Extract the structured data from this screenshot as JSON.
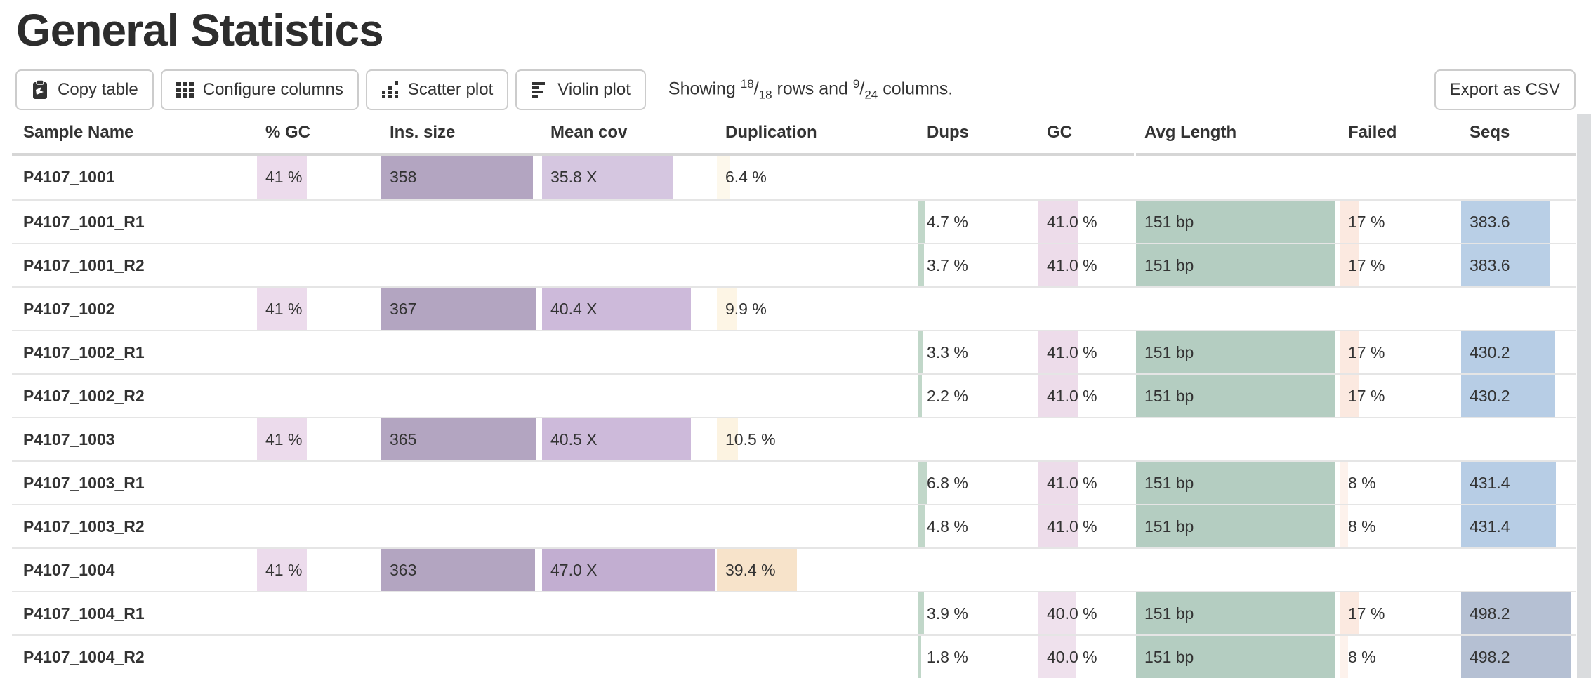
{
  "page": {
    "title": "General Statistics"
  },
  "toolbar": {
    "buttons": [
      {
        "id": "copy-table",
        "label": "Copy table",
        "icon": "clipboard-icon"
      },
      {
        "id": "configure-columns",
        "label": "Configure columns",
        "icon": "grid-icon"
      },
      {
        "id": "scatter-plot",
        "label": "Scatter plot",
        "icon": "scatter-icon"
      },
      {
        "id": "violin-plot",
        "label": "Violin plot",
        "icon": "violin-icon"
      }
    ],
    "showing": {
      "prefix": "Showing",
      "rows_shown": "18",
      "rows_total": "18",
      "mid": "rows and",
      "cols_shown": "9",
      "cols_total": "24",
      "suffix": "columns."
    },
    "export_label": "Export as CSV"
  },
  "colors": {
    "gc_pct_bar": "#ecdbec",
    "ins_size_bar": "#b3a5c1",
    "dups_bar": "#c1d7c9",
    "avg_len_bar": "#b4cdc1",
    "header_rule": "#d6d6d6",
    "row_divider": "#e5e5e5",
    "scrollbar": "#dadcde"
  },
  "table": {
    "columns": [
      {
        "id": "sample",
        "label": "Sample Name"
      },
      {
        "id": "gc_pct",
        "label": "% GC"
      },
      {
        "id": "ins_size",
        "label": "Ins. size"
      },
      {
        "id": "mean_cov",
        "label": "Mean cov"
      },
      {
        "id": "duplication",
        "label": "Duplication"
      },
      {
        "id": "dups",
        "label": "Dups"
      },
      {
        "id": "gc",
        "label": "GC"
      },
      {
        "id": "avg_len",
        "label": "Avg Length"
      },
      {
        "id": "failed",
        "label": "Failed"
      },
      {
        "id": "seqs",
        "label": "Seqs"
      }
    ],
    "rows": [
      {
        "sample": "P4107_1001",
        "cells": [
          {
            "col": "gc_pct",
            "text": "41 %",
            "bar_pct": 41,
            "bar_color": "#ecdbec"
          },
          {
            "col": "ins_size",
            "text": "358",
            "bar_pct": 95.5,
            "bar_color": "#b3a5c1"
          },
          {
            "col": "mean_cov",
            "text": "35.8 X",
            "bar_pct": 76,
            "bar_color": "#d5c6e0"
          },
          {
            "col": "duplication",
            "text": "6.4 %",
            "bar_pct": 6.5,
            "bar_color": "#fdf8ec"
          }
        ]
      },
      {
        "sample": "P4107_1001_R1",
        "cells": [
          {
            "col": "dups",
            "text": "4.7 %",
            "bar_pct": 6,
            "bar_color": "#c1d7c9"
          },
          {
            "col": "gc",
            "text": "41.0 %",
            "bar_pct": 41,
            "bar_color": "#eddcea"
          },
          {
            "col": "avg_len",
            "text": "151 bp",
            "bar_pct": 99,
            "bar_color": "#b4cdc1"
          },
          {
            "col": "failed",
            "text": "17 %",
            "bar_pct": 16,
            "bar_color": "#fbe9e0"
          },
          {
            "col": "seqs",
            "text": "383.6",
            "bar_pct": 77,
            "bar_color": "#b9cfe6"
          }
        ]
      },
      {
        "sample": "P4107_1001_R2",
        "cells": [
          {
            "col": "dups",
            "text": "3.7 %",
            "bar_pct": 5,
            "bar_color": "#c1d7c9"
          },
          {
            "col": "gc",
            "text": "41.0 %",
            "bar_pct": 41,
            "bar_color": "#eddcea"
          },
          {
            "col": "avg_len",
            "text": "151 bp",
            "bar_pct": 99,
            "bar_color": "#b4cdc1"
          },
          {
            "col": "failed",
            "text": "17 %",
            "bar_pct": 16,
            "bar_color": "#fbe9e0"
          },
          {
            "col": "seqs",
            "text": "383.6",
            "bar_pct": 77,
            "bar_color": "#b9cfe6"
          }
        ]
      },
      {
        "sample": "P4107_1002",
        "cells": [
          {
            "col": "gc_pct",
            "text": "41 %",
            "bar_pct": 41,
            "bar_color": "#ecdbec"
          },
          {
            "col": "ins_size",
            "text": "367",
            "bar_pct": 97.9,
            "bar_color": "#b3a5c1"
          },
          {
            "col": "mean_cov",
            "text": "40.4 X",
            "bar_pct": 86,
            "bar_color": "#cdbada"
          },
          {
            "col": "duplication",
            "text": "9.9 %",
            "bar_pct": 10,
            "bar_color": "#fdf5e5"
          }
        ]
      },
      {
        "sample": "P4107_1002_R1",
        "cells": [
          {
            "col": "dups",
            "text": "3.3 %",
            "bar_pct": 4,
            "bar_color": "#c1d7c9"
          },
          {
            "col": "gc",
            "text": "41.0 %",
            "bar_pct": 41,
            "bar_color": "#eddcea"
          },
          {
            "col": "avg_len",
            "text": "151 bp",
            "bar_pct": 99,
            "bar_color": "#b4cdc1"
          },
          {
            "col": "failed",
            "text": "17 %",
            "bar_pct": 16,
            "bar_color": "#fbe9e0"
          },
          {
            "col": "seqs",
            "text": "430.2",
            "bar_pct": 82,
            "bar_color": "#b7cde5"
          }
        ]
      },
      {
        "sample": "P4107_1002_R2",
        "cells": [
          {
            "col": "dups",
            "text": "2.2 %",
            "bar_pct": 3,
            "bar_color": "#c1d7c9"
          },
          {
            "col": "gc",
            "text": "41.0 %",
            "bar_pct": 41,
            "bar_color": "#eddcea"
          },
          {
            "col": "avg_len",
            "text": "151 bp",
            "bar_pct": 99,
            "bar_color": "#b4cdc1"
          },
          {
            "col": "failed",
            "text": "17 %",
            "bar_pct": 16,
            "bar_color": "#fbe9e0"
          },
          {
            "col": "seqs",
            "text": "430.2",
            "bar_pct": 82,
            "bar_color": "#b7cde5"
          }
        ]
      },
      {
        "sample": "P4107_1003",
        "cells": [
          {
            "col": "gc_pct",
            "text": "41 %",
            "bar_pct": 41,
            "bar_color": "#ecdbec"
          },
          {
            "col": "ins_size",
            "text": "365",
            "bar_pct": 97.3,
            "bar_color": "#b3a5c1"
          },
          {
            "col": "mean_cov",
            "text": "40.5 X",
            "bar_pct": 86.2,
            "bar_color": "#cdbada"
          },
          {
            "col": "duplication",
            "text": "10.5 %",
            "bar_pct": 10.5,
            "bar_color": "#fcf3e1"
          }
        ]
      },
      {
        "sample": "P4107_1003_R1",
        "cells": [
          {
            "col": "dups",
            "text": "6.8 %",
            "bar_pct": 8,
            "bar_color": "#c1d7c9"
          },
          {
            "col": "gc",
            "text": "41.0 %",
            "bar_pct": 41,
            "bar_color": "#eddcea"
          },
          {
            "col": "avg_len",
            "text": "151 bp",
            "bar_pct": 99,
            "bar_color": "#b4cdc1"
          },
          {
            "col": "failed",
            "text": "8 %",
            "bar_pct": 7,
            "bar_color": "#fdf2ec"
          },
          {
            "col": "seqs",
            "text": "431.4",
            "bar_pct": 82.5,
            "bar_color": "#b7cde5"
          }
        ]
      },
      {
        "sample": "P4107_1003_R2",
        "cells": [
          {
            "col": "dups",
            "text": "4.8 %",
            "bar_pct": 6,
            "bar_color": "#c1d7c9"
          },
          {
            "col": "gc",
            "text": "41.0 %",
            "bar_pct": 41,
            "bar_color": "#eddcea"
          },
          {
            "col": "avg_len",
            "text": "151 bp",
            "bar_pct": 99,
            "bar_color": "#b4cdc1"
          },
          {
            "col": "failed",
            "text": "8 %",
            "bar_pct": 7,
            "bar_color": "#fdf2ec"
          },
          {
            "col": "seqs",
            "text": "431.4",
            "bar_pct": 82.5,
            "bar_color": "#b7cde5"
          }
        ]
      },
      {
        "sample": "P4107_1004",
        "cells": [
          {
            "col": "gc_pct",
            "text": "41 %",
            "bar_pct": 41,
            "bar_color": "#ecdbec"
          },
          {
            "col": "ins_size",
            "text": "363",
            "bar_pct": 96.8,
            "bar_color": "#b3a5c1"
          },
          {
            "col": "mean_cov",
            "text": "47.0 X",
            "bar_pct": 100,
            "bar_color": "#c2aed1"
          },
          {
            "col": "duplication",
            "text": "39.4 %",
            "bar_pct": 40,
            "bar_color": "#f7e3ca"
          }
        ]
      },
      {
        "sample": "P4107_1004_R1",
        "cells": [
          {
            "col": "dups",
            "text": "3.9 %",
            "bar_pct": 5,
            "bar_color": "#c1d7c9"
          },
          {
            "col": "gc",
            "text": "40.0 %",
            "bar_pct": 40,
            "bar_color": "#efe1ed"
          },
          {
            "col": "avg_len",
            "text": "151 bp",
            "bar_pct": 99,
            "bar_color": "#b4cdc1"
          },
          {
            "col": "failed",
            "text": "17 %",
            "bar_pct": 16,
            "bar_color": "#fbe9e0"
          },
          {
            "col": "seqs",
            "text": "498.2",
            "bar_pct": 95.5,
            "bar_color": "#b5c0d3"
          }
        ]
      },
      {
        "sample": "P4107_1004_R2",
        "cells": [
          {
            "col": "dups",
            "text": "1.8 %",
            "bar_pct": 2.5,
            "bar_color": "#c1d7c9"
          },
          {
            "col": "gc",
            "text": "40.0 %",
            "bar_pct": 40,
            "bar_color": "#efe1ed"
          },
          {
            "col": "avg_len",
            "text": "151 bp",
            "bar_pct": 99,
            "bar_color": "#b4cdc1"
          },
          {
            "col": "failed",
            "text": "8 %",
            "bar_pct": 7,
            "bar_color": "#fdf2ec"
          },
          {
            "col": "seqs",
            "text": "498.2",
            "bar_pct": 95.5,
            "bar_color": "#b5c0d3"
          }
        ]
      }
    ]
  }
}
